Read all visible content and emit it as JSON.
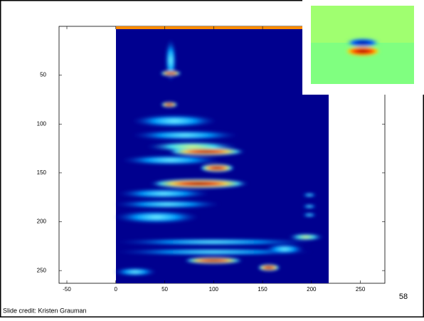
{
  "chart_data": {
    "type": "image",
    "xlim": [
      -58,
      275
    ],
    "ylim": [
      0,
      263
    ],
    "xticks": [
      -50,
      0,
      50,
      100,
      150,
      200,
      250
    ],
    "yticks": [
      50,
      100,
      150,
      200,
      250
    ]
  },
  "slide_number": "58",
  "credit": "Slide credit: Kristen Grauman"
}
